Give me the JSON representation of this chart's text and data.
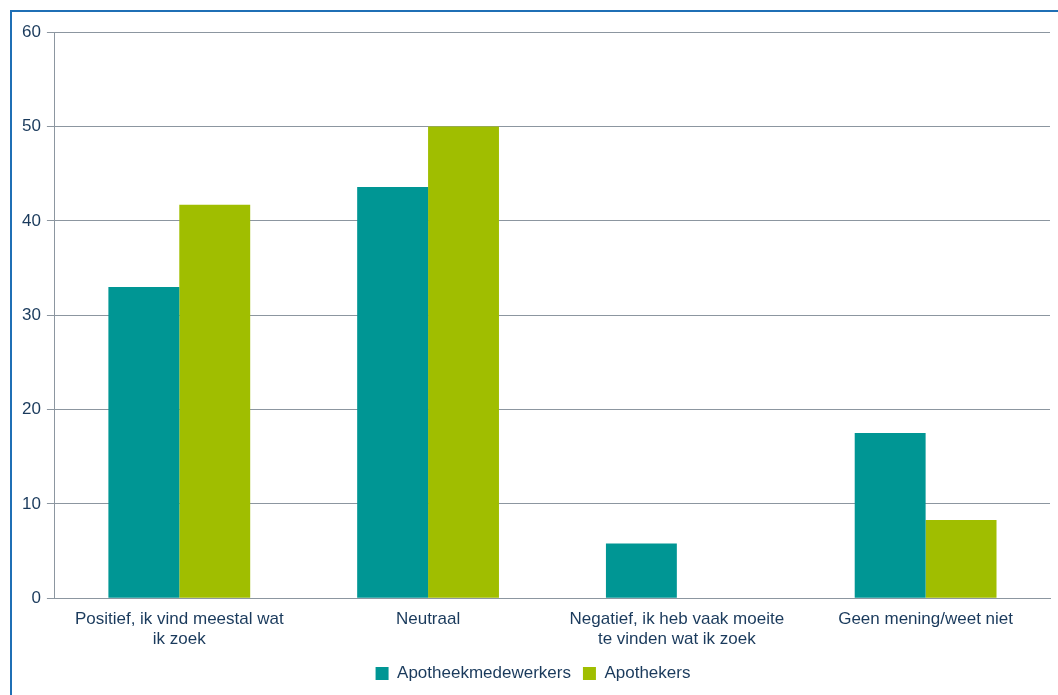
{
  "chart_data": {
    "type": "bar",
    "categories": [
      "Positief, ik vind meestal wat ik zoek",
      "Neutraal",
      "Negatief, ik heb vaak moeite te vinden wat ik zoek",
      "Geen mening/weet niet"
    ],
    "series": [
      {
        "name": "Apotheekmedewerkers",
        "color": "#009694",
        "values": [
          33.0,
          43.6,
          5.8,
          17.5
        ]
      },
      {
        "name": "Apothekers",
        "color": "#a0be00",
        "values": [
          41.7,
          50.0,
          0,
          8.3
        ]
      }
    ],
    "ylim": [
      0,
      60
    ],
    "yticks": [
      0,
      10,
      20,
      30,
      40,
      50,
      60
    ],
    "grid": "y",
    "legend": "bottom"
  }
}
